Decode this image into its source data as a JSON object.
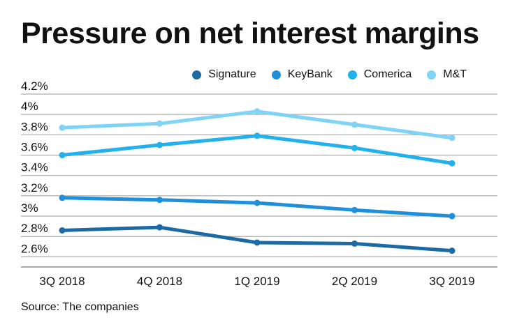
{
  "title": "Pressure on net interest margins",
  "source": "Source: The companies",
  "chart_data": {
    "type": "line",
    "title": "Pressure on net interest margins",
    "categories": [
      "3Q 2018",
      "4Q 2018",
      "1Q 2019",
      "2Q 2019",
      "3Q 2019"
    ],
    "ylim": [
      2.5,
      4.2
    ],
    "yticks": [
      2.6,
      2.8,
      3.0,
      3.2,
      3.4,
      3.6,
      3.8,
      4.0,
      4.2
    ],
    "ytick_labels": [
      "2.6%",
      "2.8%",
      "3%",
      "3.2%",
      "3.4%",
      "3.6%",
      "3.8%",
      "4%",
      "4.2%"
    ],
    "grid": true,
    "legend_position": "top-right",
    "series": [
      {
        "name": "Signature",
        "color": "#1b6aa5",
        "values": [
          2.86,
          2.89,
          2.74,
          2.73,
          2.66
        ]
      },
      {
        "name": "KeyBank",
        "color": "#1f8fdc",
        "values": [
          3.18,
          3.16,
          3.13,
          3.06,
          3.0
        ]
      },
      {
        "name": "Comerica",
        "color": "#22b1ec",
        "values": [
          3.6,
          3.7,
          3.79,
          3.67,
          3.52
        ]
      },
      {
        "name": "M&T",
        "color": "#7fd3f7",
        "values": [
          3.87,
          3.91,
          4.03,
          3.9,
          3.77
        ]
      }
    ]
  }
}
